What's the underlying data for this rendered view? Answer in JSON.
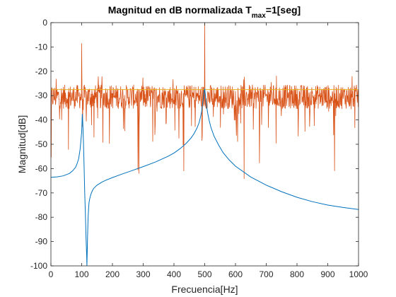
{
  "chart_data": {
    "type": "line",
    "title": "Magnitud en dB normalizada T",
    "title_sub": "max",
    "title_suffix": "=1[seg]",
    "xlabel": "Frecuencia[Hz]",
    "ylabel": "Magnitud[dB]",
    "xlim": [
      0,
      1000
    ],
    "ylim": [
      -100,
      0
    ],
    "x_ticks": [
      0,
      100,
      200,
      300,
      400,
      500,
      600,
      700,
      800,
      900,
      1000
    ],
    "y_ticks": [
      0,
      -10,
      -20,
      -30,
      -40,
      -50,
      -60,
      -70,
      -80,
      -90,
      -100
    ],
    "grid": false,
    "legend": "none",
    "series": [
      {
        "color": "#0072BD",
        "x": [
          0,
          20,
          40,
          60,
          70,
          80,
          85,
          90,
          95,
          98,
          100,
          102,
          104,
          106,
          108,
          110,
          112,
          114,
          116,
          117,
          118,
          119,
          120,
          121,
          122,
          123,
          124,
          126,
          130,
          135,
          140,
          150,
          165,
          180,
          200,
          230,
          260,
          300,
          340,
          380,
          400,
          420,
          440,
          455,
          465,
          475,
          482,
          487,
          490,
          492,
          494,
          496,
          498,
          500,
          502,
          504,
          507,
          510,
          515,
          520,
          530,
          545,
          560,
          580,
          600,
          650,
          700,
          750,
          800,
          850,
          900,
          950,
          1000
        ],
        "y": [
          -63.6,
          -63.4,
          -63,
          -62,
          -61,
          -59.5,
          -58,
          -56,
          -52,
          -48,
          -45,
          -37.5,
          -42,
          -50,
          -60,
          -70,
          -78,
          -88,
          -95,
          -100,
          -95,
          -88,
          -84,
          -80,
          -77.5,
          -75.5,
          -74,
          -72.5,
          -70.5,
          -69,
          -68,
          -66.8,
          -65.6,
          -64.7,
          -63.7,
          -62.3,
          -61,
          -59.2,
          -57.3,
          -55,
          -53.6,
          -51.8,
          -49.6,
          -47.5,
          -45.7,
          -43.3,
          -41,
          -38.5,
          -36.5,
          -34.5,
          -32.5,
          -30.5,
          -28.5,
          -27.2,
          -29.5,
          -32,
          -35,
          -37.5,
          -40.5,
          -43,
          -46.6,
          -50.3,
          -53.5,
          -56.5,
          -59,
          -63.5,
          -66.8,
          -69.5,
          -71.8,
          -73.6,
          -75,
          -76,
          -76.8
        ]
      },
      {
        "color": "#D95319",
        "x": [
          100,
          500
        ],
        "y": [
          -8.5,
          0
        ]
      },
      {
        "color": "#EDB120",
        "x": [
          0,
          1000
        ],
        "y": [
          -27.5,
          -27.5
        ]
      }
    ]
  }
}
